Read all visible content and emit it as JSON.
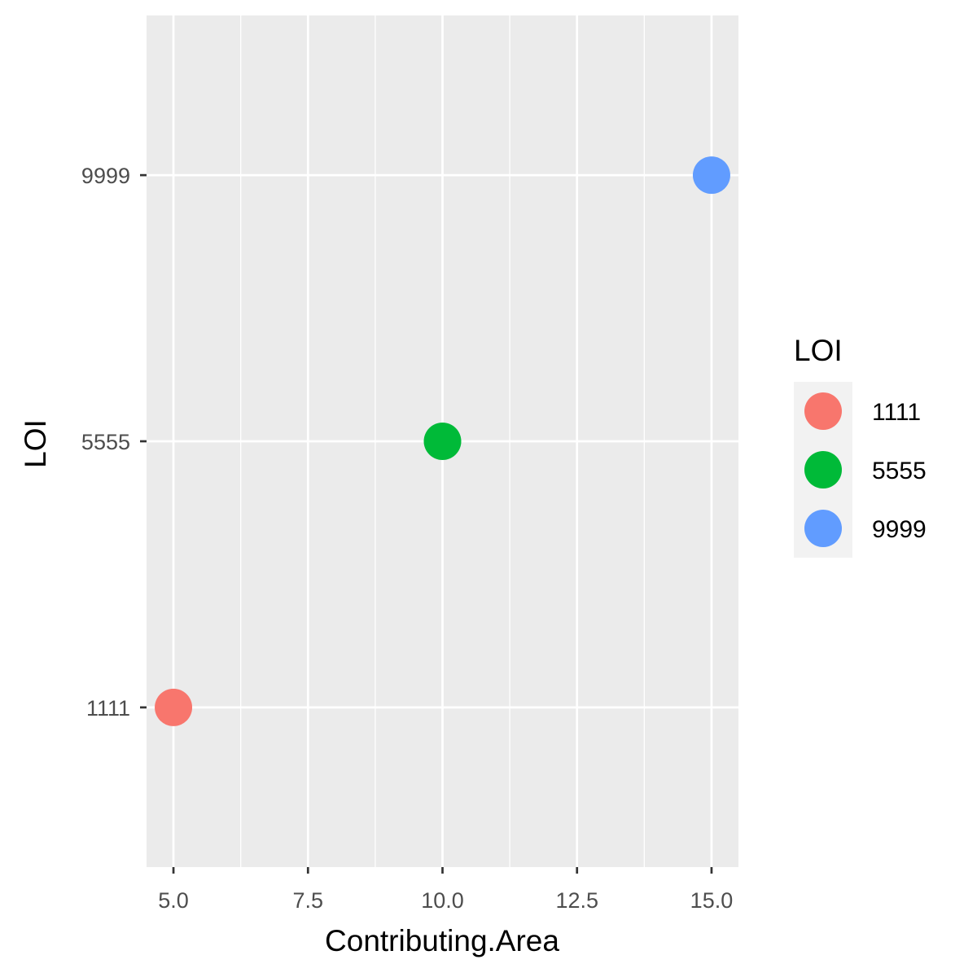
{
  "chart_data": {
    "type": "scatter",
    "title": "",
    "xlabel": "Contributing.Area",
    "ylabel": "LOI",
    "xlim": [
      4.5,
      15.5
    ],
    "x_ticks": [
      5.0,
      7.5,
      10.0,
      12.5,
      15.0
    ],
    "x_tick_labels": [
      "5.0",
      "7.5",
      "10.0",
      "12.5",
      "15.0"
    ],
    "y_categories": [
      "1111",
      "5555",
      "9999"
    ],
    "grid": true,
    "legend": {
      "title": "LOI",
      "placement": "right",
      "entries": [
        "1111",
        "5555",
        "9999"
      ]
    },
    "points": [
      {
        "x": 5.0,
        "y": "1111",
        "color": "#F8766D"
      },
      {
        "x": 10.0,
        "y": "5555",
        "color": "#00BA38"
      },
      {
        "x": 15.0,
        "y": "9999",
        "color": "#619CFF"
      }
    ],
    "colors": {
      "panel": "#EBEBEB",
      "grid": "#FFFFFF",
      "legend_key": "#F2F2F2"
    }
  }
}
